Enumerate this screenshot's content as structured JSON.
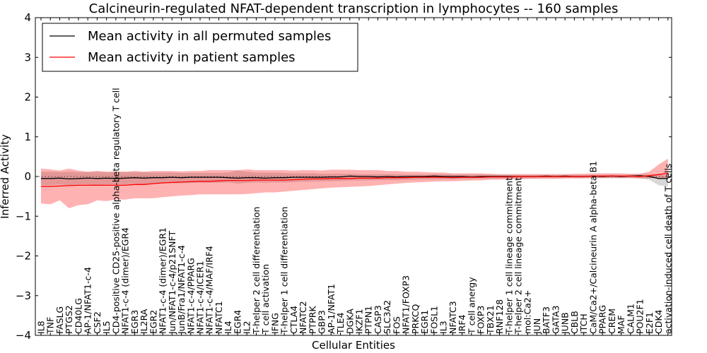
{
  "chart_data": {
    "type": "line",
    "title": "Calcineurin-regulated NFAT-dependent transcription in lymphocytes -- 160 samples",
    "xlabel": "Cellular Entities",
    "ylabel": "Inferred Activity",
    "ylim": [
      -4,
      4
    ],
    "yticks": [
      -4,
      -3,
      -2,
      -1,
      0,
      1,
      2,
      3,
      4
    ],
    "grid": false,
    "legend_position": "top-left",
    "categories": [
      "IL8",
      "TNF",
      "FASLG",
      "PTGS2",
      "CD40LG",
      "AP-1/NFAT1-c-4",
      "CSF2",
      "IL5",
      "CD4-positive CD25-positive alpha-beta regulatory T cell",
      "NFAT1-c-4 (dimer)/EGR4",
      "EGR3",
      "IL2RA",
      "EGR2",
      "NFAT1-c-4 (dimer)/EGR1",
      "Jun/NFAT1-c-4/p21SNFT",
      "JunB/Fra1/NFAT1-c-4",
      "NFAT1-c-4/PPARG",
      "NFAT1-c-4/ICER1",
      "NFAT1-c-4/MAF/IRF4",
      "NFATC1",
      "IL4",
      "EGR4",
      "IL2",
      "T-helper 2 cell differentiation",
      "T cell activation",
      "IFNG",
      "T-helper 1 cell differentiation",
      "CTLA4",
      "NFATC2",
      "PTPRK",
      "GBP3",
      "AP-1/NFAT1",
      "TLE4",
      "DGKA",
      "IKZF1",
      "PTPN1",
      "CASP3",
      "SLC3A2",
      "FOS",
      "NFAT1/FOXP3",
      "PRKCQ",
      "EGR1",
      "FOSL1",
      "IL3",
      "NFATC3",
      "IRF4",
      "T cell anergy",
      "FOXP3",
      "TBX21",
      "RNF128",
      "T-helper 1 cell lineage commitment",
      "T-helper 2 cell lineage commitment",
      "mol:Ca2+",
      "JUN",
      "BATF3",
      "GATA3",
      "JUNB",
      "CBLB",
      "ITCH",
      "CaM/Ca2+/Calcineurin A alpha-beta B1",
      "PPARG",
      "CREM",
      "MAF",
      "CALM1",
      "POU2F1",
      "E2F1",
      "CDK4",
      "activation-induced cell death of T cells"
    ],
    "series": [
      {
        "name": "Mean activity in all permuted samples",
        "color": "#000000",
        "values": [
          -0.05,
          -0.05,
          -0.04,
          -0.06,
          -0.05,
          -0.04,
          -0.05,
          -0.04,
          -0.05,
          -0.04,
          -0.03,
          -0.04,
          -0.03,
          -0.03,
          -0.02,
          -0.03,
          -0.02,
          -0.02,
          -0.02,
          -0.02,
          -0.03,
          -0.04,
          -0.03,
          -0.03,
          -0.04,
          -0.03,
          -0.03,
          -0.02,
          -0.02,
          -0.02,
          -0.02,
          -0.01,
          -0.01,
          0.01,
          0.0,
          0.0,
          -0.01,
          0.0,
          -0.01,
          0.0,
          0.0,
          0.0,
          0.01,
          0.0,
          0.0,
          0.0,
          -0.01,
          0.0,
          0.0,
          0.0,
          0.0,
          0.0,
          0.0,
          0.0,
          0.01,
          0.0,
          0.01,
          0.0,
          0.0,
          0.01,
          0.0,
          0.01,
          0.0,
          0.01,
          0.02,
          0.0,
          -0.05,
          -0.05
        ],
        "band_low": [
          -0.22,
          -0.22,
          -0.2,
          -0.22,
          -0.2,
          -0.2,
          -0.22,
          -0.2,
          -0.2,
          -0.2,
          -0.18,
          -0.2,
          -0.18,
          -0.18,
          -0.17,
          -0.17,
          -0.16,
          -0.16,
          -0.16,
          -0.16,
          -0.15,
          -0.18,
          -0.16,
          -0.15,
          -0.16,
          -0.15,
          -0.15,
          -0.14,
          -0.13,
          -0.13,
          -0.12,
          -0.12,
          -0.11,
          -0.1,
          -0.1,
          -0.1,
          -0.09,
          -0.09,
          -0.09,
          -0.08,
          -0.08,
          -0.07,
          -0.07,
          -0.07,
          -0.06,
          -0.06,
          -0.06,
          -0.05,
          -0.05,
          -0.05,
          -0.05,
          -0.05,
          -0.05,
          -0.04,
          -0.04,
          -0.04,
          -0.04,
          -0.04,
          -0.04,
          -0.04,
          -0.04,
          -0.04,
          -0.04,
          -0.04,
          -0.05,
          -0.08,
          -0.22,
          -0.25
        ],
        "band_high": [
          0.12,
          0.12,
          0.11,
          0.12,
          0.11,
          0.11,
          0.12,
          0.11,
          0.11,
          0.11,
          0.11,
          0.11,
          0.1,
          0.1,
          0.1,
          0.09,
          0.09,
          0.09,
          0.09,
          0.09,
          0.1,
          0.15,
          0.12,
          0.1,
          0.1,
          0.1,
          0.09,
          0.08,
          0.08,
          0.08,
          0.07,
          0.07,
          0.07,
          0.07,
          0.06,
          0.06,
          0.06,
          0.06,
          0.06,
          0.05,
          0.05,
          0.05,
          0.06,
          0.06,
          0.05,
          0.05,
          0.05,
          0.05,
          0.05,
          0.04,
          0.04,
          0.04,
          0.04,
          0.04,
          0.04,
          0.04,
          0.04,
          0.04,
          0.04,
          0.04,
          0.04,
          0.05,
          0.04,
          0.05,
          0.06,
          0.06,
          0.05,
          0.02
        ]
      },
      {
        "name": "Mean activity in patient samples",
        "color": "#ff0000",
        "values": [
          -0.25,
          -0.25,
          -0.24,
          -0.23,
          -0.22,
          -0.22,
          -0.22,
          -0.22,
          -0.22,
          -0.22,
          -0.2,
          -0.2,
          -0.18,
          -0.16,
          -0.15,
          -0.14,
          -0.13,
          -0.12,
          -0.12,
          -0.11,
          -0.1,
          -0.1,
          -0.1,
          -0.09,
          -0.09,
          -0.09,
          -0.09,
          -0.08,
          -0.07,
          -0.06,
          -0.06,
          -0.05,
          -0.05,
          -0.05,
          -0.04,
          -0.04,
          -0.04,
          -0.03,
          -0.03,
          -0.03,
          -0.02,
          -0.02,
          -0.02,
          -0.02,
          -0.03,
          -0.02,
          -0.02,
          -0.02,
          -0.01,
          -0.01,
          -0.01,
          0.0,
          0.0,
          0.0,
          0.0,
          0.0,
          0.0,
          0.0,
          0.0,
          0.01,
          0.01,
          0.01,
          0.01,
          0.01,
          0.0,
          0.02,
          0.05,
          0.08
        ],
        "band_low": [
          -0.68,
          -0.7,
          -0.6,
          -0.8,
          -0.72,
          -0.7,
          -0.6,
          -0.62,
          -0.58,
          -0.58,
          -0.55,
          -0.55,
          -0.55,
          -0.52,
          -0.5,
          -0.48,
          -0.47,
          -0.45,
          -0.45,
          -0.45,
          -0.45,
          -0.45,
          -0.44,
          -0.42,
          -0.4,
          -0.4,
          -0.38,
          -0.36,
          -0.34,
          -0.32,
          -0.3,
          -0.28,
          -0.27,
          -0.26,
          -0.25,
          -0.24,
          -0.22,
          -0.2,
          -0.18,
          -0.16,
          -0.15,
          -0.14,
          -0.13,
          -0.12,
          -0.12,
          -0.11,
          -0.1,
          -0.1,
          -0.08,
          -0.08,
          -0.07,
          -0.07,
          -0.06,
          -0.06,
          -0.06,
          -0.06,
          -0.05,
          -0.05,
          -0.05,
          -0.04,
          -0.04,
          -0.04,
          -0.04,
          -0.04,
          -0.05,
          -0.05,
          -0.03,
          -0.05
        ],
        "band_high": [
          0.2,
          0.18,
          0.15,
          0.2,
          0.15,
          0.12,
          0.14,
          0.12,
          0.13,
          0.12,
          0.14,
          0.12,
          0.14,
          0.14,
          0.14,
          0.13,
          0.14,
          0.14,
          0.16,
          0.16,
          0.16,
          0.16,
          0.18,
          0.16,
          0.16,
          0.16,
          0.16,
          0.15,
          0.16,
          0.16,
          0.15,
          0.17,
          0.17,
          0.17,
          0.16,
          0.16,
          0.16,
          0.14,
          0.14,
          0.12,
          0.12,
          0.11,
          0.1,
          0.1,
          0.08,
          0.08,
          0.08,
          0.08,
          0.07,
          0.06,
          0.06,
          0.06,
          0.06,
          0.06,
          0.06,
          0.06,
          0.06,
          0.07,
          0.07,
          0.08,
          0.08,
          0.08,
          0.08,
          0.07,
          0.07,
          0.12,
          0.3,
          0.45
        ]
      }
    ]
  }
}
